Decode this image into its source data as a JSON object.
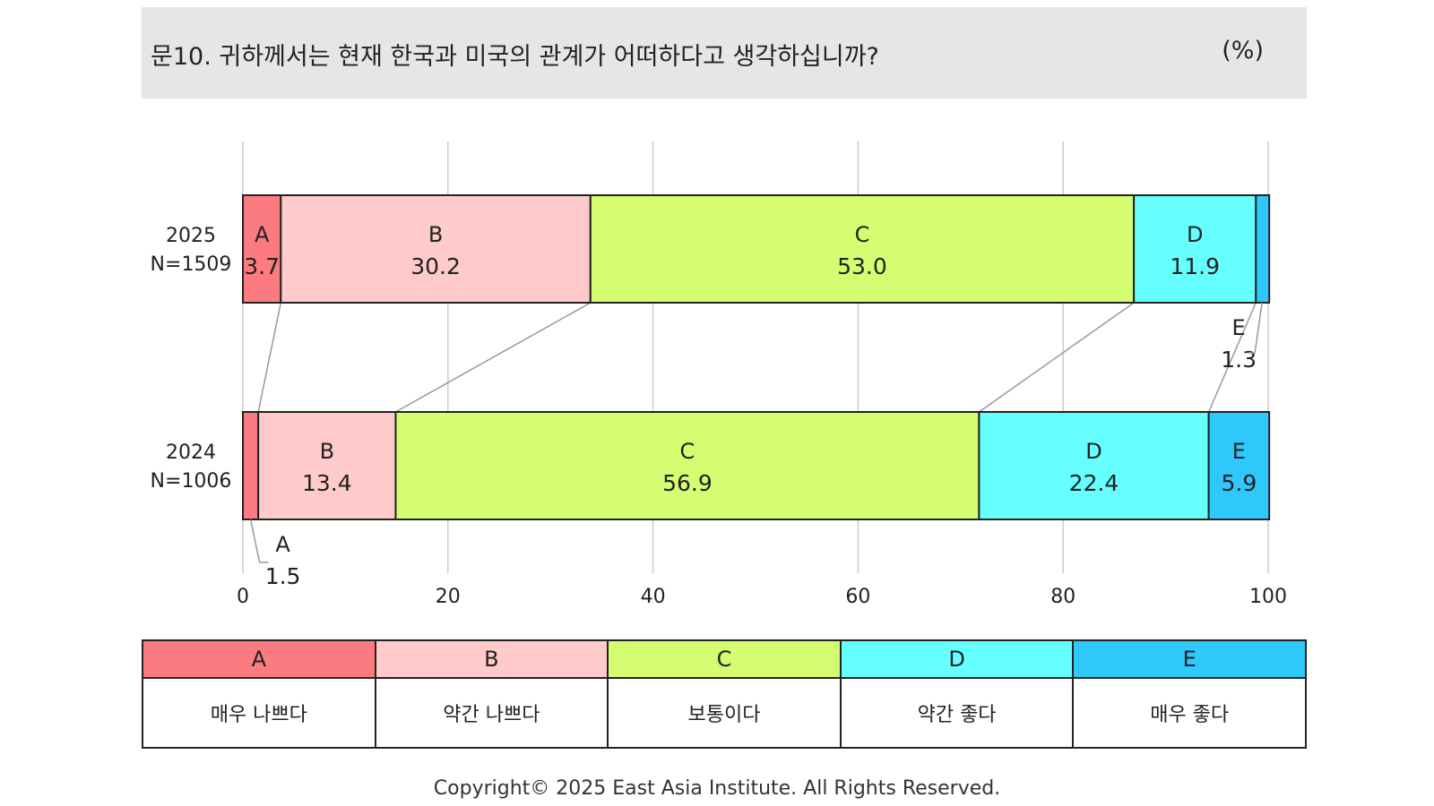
{
  "header": {
    "question": "문10. 귀하께서는 현재 한국과 미국의 관계가 어떠하다고 생각하십니까?",
    "unit": "(%)"
  },
  "chart_data": {
    "type": "bar",
    "orientation": "horizontal-stacked",
    "xlim": [
      0,
      100
    ],
    "x_ticks": [
      "0",
      "20",
      "40",
      "60",
      "80",
      "100"
    ],
    "grid": true,
    "series_keys": [
      "A",
      "B",
      "C",
      "D",
      "E"
    ],
    "colors": [
      "#fb7b80",
      "#fecaca",
      "#d5fd72",
      "#66ffff",
      "#2ec8fb"
    ],
    "rows": [
      {
        "year": "2025",
        "n": "N=1509",
        "values": [
          3.7,
          30.2,
          53.0,
          11.9,
          1.3
        ],
        "labels": [
          "3.7",
          "30.2",
          "53.0",
          "11.9",
          "1.3"
        ]
      },
      {
        "year": "2024",
        "n": "N=1006",
        "values": [
          1.5,
          13.4,
          56.9,
          22.4,
          5.9
        ],
        "labels": [
          "1.5",
          "13.4",
          "56.9",
          "22.4",
          "5.9"
        ]
      }
    ]
  },
  "legend": {
    "codes": [
      "A",
      "B",
      "C",
      "D",
      "E"
    ],
    "labels": [
      "매우 나쁘다",
      "약간 나쁘다",
      "보통이다",
      "약간 좋다",
      "매우 좋다"
    ]
  },
  "copyright": "Copyright© 2025 East Asia Institute. All Rights Reserved."
}
